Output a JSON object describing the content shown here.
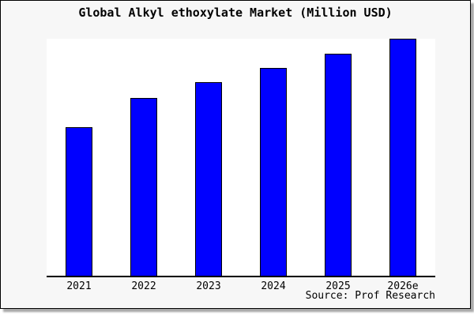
{
  "title": "Global Alkyl ethoxylate Market (Million USD)",
  "source_credit": "Source: Prof Research",
  "colors": {
    "bar_fill": "#0000FF",
    "bar_border": "#000000",
    "frame_background": "#f7f7f7",
    "plot_background": "#ffffff",
    "frame_border": "#000000",
    "drop_shadow": "#a9a9a9"
  },
  "chart_data": {
    "type": "bar",
    "title": "Global Alkyl ethoxylate Market (Million USD)",
    "categories": [
      "2021",
      "2022",
      "2023",
      "2024",
      "2025",
      "2026e"
    ],
    "values": [
      62.7,
      75.0,
      81.7,
      87.7,
      93.7,
      100.0
    ],
    "values_note": "Chart displays no y-axis scale or data labels; values are bar heights as a percentage of the tallest (2026e) bar",
    "xlabel": "",
    "ylabel": "",
    "ylim": [
      0,
      100
    ],
    "y_axis_ticks": "none",
    "grid": false,
    "legend": "none",
    "bar_color": "#0000FF",
    "bar_border_color": "#000000",
    "annotation": "Source: Prof Research"
  }
}
